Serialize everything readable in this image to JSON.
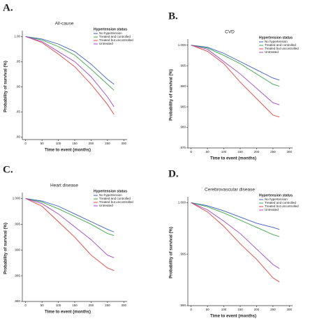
{
  "chart_data": [
    {
      "type": "line",
      "panel_label": "A.",
      "title": "All-cause",
      "x_label": "Time to event (months)",
      "y_label": "Probability of survival (%)",
      "legend_title": "Hypertension status",
      "x": [
        0,
        50,
        100,
        150,
        200,
        250,
        270
      ],
      "xlim": [
        -10,
        310
      ],
      "xticks": [
        0,
        50,
        100,
        150,
        200,
        250,
        300
      ],
      "ylim": [
        0.795,
        1.006
      ],
      "yticks": [
        {
          "value": 1.0,
          "label": "1.00"
        },
        {
          "value": 0.95,
          "label": ".95"
        },
        {
          "value": 0.9,
          "label": ".90"
        },
        {
          "value": 0.85,
          "label": ".85"
        },
        {
          "value": 0.8,
          "label": ".80"
        }
      ],
      "series": [
        {
          "name": "No hypertension",
          "color": "#3b5fc4",
          "values": [
            1,
            0.995,
            0.985,
            0.97,
            0.945,
            0.915,
            0.905
          ]
        },
        {
          "name": "Treated and controlled",
          "color": "#3aa64a",
          "values": [
            1,
            0.993,
            0.98,
            0.963,
            0.935,
            0.905,
            0.893
          ]
        },
        {
          "name": "Treated but uncontrolled",
          "color": "#e8423f",
          "values": [
            1,
            0.988,
            0.965,
            0.94,
            0.905,
            0.865,
            0.845
          ]
        },
        {
          "name": "Untreated",
          "color": "#a347c8",
          "values": [
            1,
            0.99,
            0.97,
            0.95,
            0.92,
            0.88,
            0.86
          ]
        }
      ]
    },
    {
      "type": "line",
      "panel_label": "B.",
      "title": "CVD",
      "x_label": "Time to event (months)",
      "y_label": "Probability of survival (%)",
      "legend_title": "Hypertension status",
      "x": [
        0,
        50,
        100,
        150,
        200,
        250,
        270
      ],
      "xlim": [
        -10,
        310
      ],
      "xticks": [
        0,
        50,
        100,
        150,
        200,
        250,
        300
      ],
      "ylim": [
        0.975,
        1.0008
      ],
      "yticks": [
        {
          "value": 1.0,
          "label": "1.000"
        },
        {
          "value": 0.995,
          "label": ".995"
        },
        {
          "value": 0.99,
          "label": ".990"
        },
        {
          "value": 0.985,
          "label": ".985"
        },
        {
          "value": 0.98,
          "label": ".980"
        },
        {
          "value": 0.975,
          "label": ".975"
        }
      ],
      "series": [
        {
          "name": "No hypertension",
          "color": "#3b5fc4",
          "values": [
            1,
            0.9995,
            0.998,
            0.996,
            0.994,
            0.992,
            0.9915
          ]
        },
        {
          "name": "Treated and controlled",
          "color": "#3aa64a",
          "values": [
            1,
            0.9993,
            0.9975,
            0.9955,
            0.993,
            0.9905,
            0.99
          ]
        },
        {
          "name": "Treated but uncontrolled",
          "color": "#e8423f",
          "values": [
            1,
            0.9985,
            0.9955,
            0.991,
            0.987,
            0.983,
            0.9825
          ]
        },
        {
          "name": "Untreated",
          "color": "#a347c8",
          "values": [
            1,
            0.999,
            0.996,
            0.993,
            0.9895,
            0.986,
            0.9855
          ]
        }
      ]
    },
    {
      "type": "line",
      "panel_label": "C.",
      "title": "Heart disease",
      "x_label": "Time to event (months)",
      "y_label": "Probability of survival (%)",
      "legend_title": "Hypertension status",
      "x": [
        0,
        50,
        100,
        150,
        200,
        250,
        270
      ],
      "xlim": [
        -10,
        310
      ],
      "xticks": [
        0,
        50,
        100,
        150,
        200,
        250,
        300
      ],
      "ylim": [
        0.98,
        1.0006
      ],
      "yticks": [
        {
          "value": 1.0,
          "label": "1.000"
        },
        {
          "value": 0.995,
          "label": ".995"
        },
        {
          "value": 0.99,
          "label": ".990"
        },
        {
          "value": 0.985,
          "label": ".985"
        },
        {
          "value": 0.98,
          "label": ".980"
        }
      ],
      "series": [
        {
          "name": "No hypertension",
          "color": "#3b5fc4",
          "values": [
            1,
            0.9995,
            0.9985,
            0.997,
            0.9955,
            0.994,
            0.9935
          ]
        },
        {
          "name": "Treated and controlled",
          "color": "#3aa64a",
          "values": [
            1,
            0.9993,
            0.998,
            0.9965,
            0.995,
            0.9932,
            0.9928
          ]
        },
        {
          "name": "Treated but uncontrolled",
          "color": "#e8423f",
          "values": [
            1,
            0.9985,
            0.9955,
            0.9925,
            0.989,
            0.9865,
            0.986
          ]
        },
        {
          "name": "Untreated",
          "color": "#a347c8",
          "values": [
            1,
            0.999,
            0.997,
            0.9945,
            0.992,
            0.989,
            0.9885
          ]
        }
      ]
    },
    {
      "type": "line",
      "panel_label": "D.",
      "title": "Cerebrovascular disease",
      "x_label": "Time to event (months)",
      "y_label": "Probability of survival (%)",
      "legend_title": "Hypertension status",
      "x": [
        0,
        50,
        100,
        150,
        200,
        250,
        270
      ],
      "xlim": [
        -10,
        310
      ],
      "xticks": [
        0,
        50,
        100,
        150,
        200,
        250,
        300
      ],
      "ylim": [
        0.99,
        1.0003
      ],
      "yticks": [
        {
          "value": 1.0,
          "label": "1.000"
        },
        {
          "value": 0.995,
          "label": ".995"
        },
        {
          "value": 0.99,
          "label": ".990"
        }
      ],
      "series": [
        {
          "name": "No hypertension",
          "color": "#3b5fc4",
          "values": [
            1,
            0.9997,
            0.9992,
            0.9986,
            0.998,
            0.9976,
            0.9974
          ]
        },
        {
          "name": "Treated and controlled",
          "color": "#3aa64a",
          "values": [
            1,
            0.9996,
            0.999,
            0.9983,
            0.9976,
            0.9969,
            0.9967
          ]
        },
        {
          "name": "Treated but uncontrolled",
          "color": "#e8423f",
          "values": [
            1,
            0.9991,
            0.9977,
            0.996,
            0.9945,
            0.9927,
            0.9923
          ]
        },
        {
          "name": "Untreated",
          "color": "#a347c8",
          "values": [
            1,
            0.9993,
            0.9982,
            0.997,
            0.9955,
            0.994,
            0.9936
          ]
        }
      ]
    }
  ]
}
